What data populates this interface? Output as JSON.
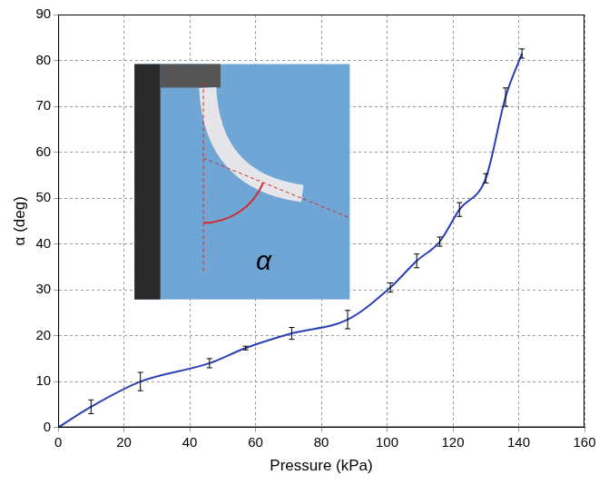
{
  "chart_data": {
    "type": "line",
    "x_label": "Pressure (kPa)",
    "y_label": "α (deg)",
    "annotation": "α",
    "x": [
      0,
      10,
      25,
      46,
      57,
      71,
      88,
      101,
      109,
      116,
      122,
      130,
      136,
      141
    ],
    "values": [
      0,
      4.5,
      10,
      14,
      17.3,
      20.5,
      23.5,
      30.5,
      36.3,
      40.5,
      47.5,
      54.3,
      72,
      81.5
    ],
    "errors": [
      0,
      1.5,
      2,
      1,
      0.4,
      1.3,
      2,
      1,
      1.5,
      1,
      1.5,
      1,
      2,
      1
    ],
    "color": "#2b3fb4",
    "marker": "none",
    "line_style": "solid",
    "xlim": [
      0,
      160
    ],
    "xticks": [
      0,
      20,
      40,
      60,
      80,
      100,
      120,
      140,
      160
    ],
    "ylim": [
      0,
      90
    ],
    "yticks": [
      0,
      10,
      20,
      30,
      40,
      50,
      60,
      70,
      80,
      90
    ],
    "grid": true
  }
}
